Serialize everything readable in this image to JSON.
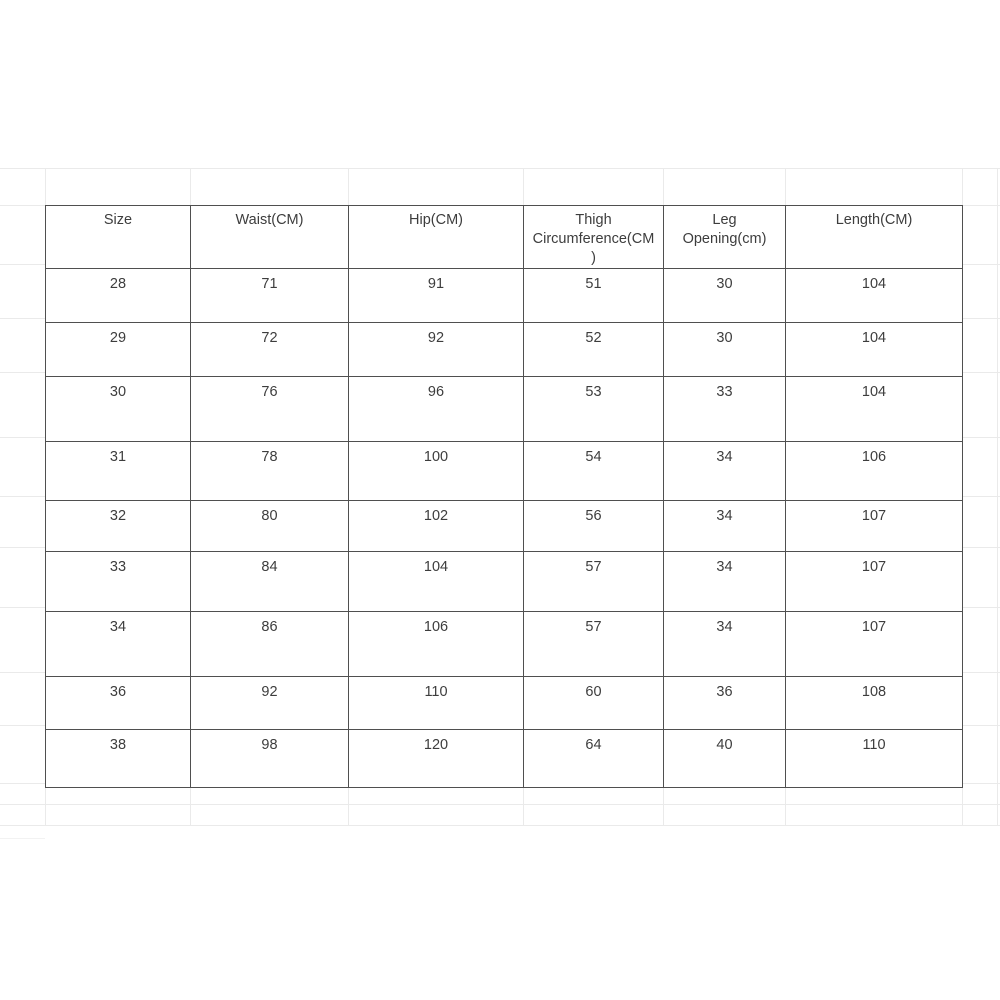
{
  "table": {
    "columns": [
      "Size",
      "Waist(CM)",
      "Hip(CM)",
      "Thigh Circumference(CM)",
      "Leg Opening(cm)",
      "Length(CM)"
    ],
    "rows": [
      [
        "28",
        "71",
        "91",
        "51",
        "30",
        "104"
      ],
      [
        "29",
        "72",
        "92",
        "52",
        "30",
        "104"
      ],
      [
        "30",
        "76",
        "96",
        "53",
        "33",
        "104"
      ],
      [
        "31",
        "78",
        "100",
        "54",
        "34",
        "106"
      ],
      [
        "32",
        "80",
        "102",
        "56",
        "34",
        "107"
      ],
      [
        "33",
        "84",
        "104",
        "57",
        "34",
        "107"
      ],
      [
        "34",
        "86",
        "106",
        "57",
        "34",
        "107"
      ],
      [
        "36",
        "92",
        "110",
        "60",
        "36",
        "108"
      ],
      [
        "38",
        "98",
        "120",
        "64",
        "40",
        "110"
      ]
    ]
  },
  "colors": {
    "background": "#ffffff",
    "table_border": "#4f4f4f",
    "text": "#3d3d3d",
    "faint_gridline": "#eaeaea"
  }
}
